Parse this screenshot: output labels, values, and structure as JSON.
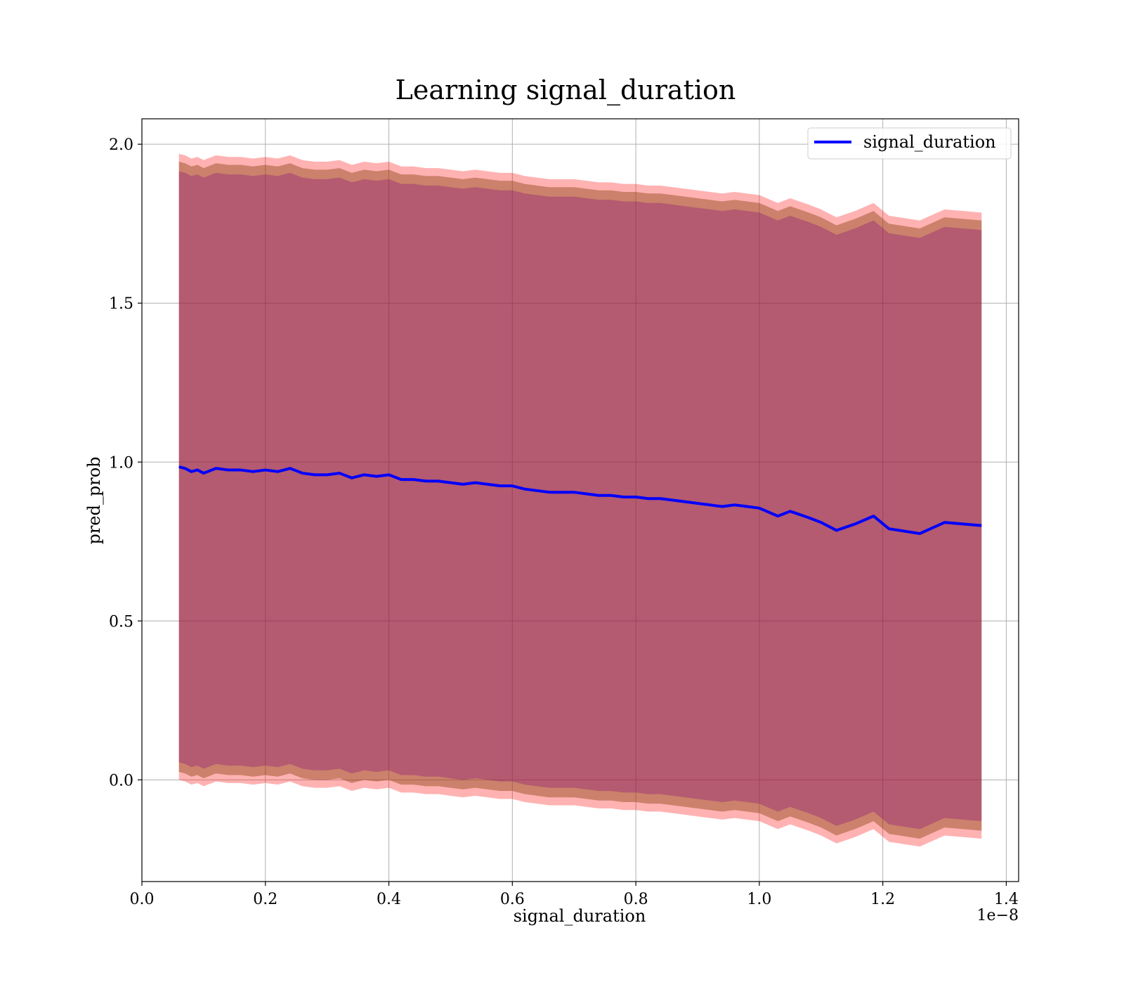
{
  "chart_data": {
    "type": "line",
    "title": "Learning signal_duration",
    "xlabel": "signal_duration",
    "ylabel": "pred_prob",
    "x_offset_label": "1e−8",
    "xlim": [
      0.0,
      1.42
    ],
    "ylim": [
      -0.32,
      2.08
    ],
    "x_ticks": [
      {
        "value": 0.0,
        "label": "0.0"
      },
      {
        "value": 0.2,
        "label": "0.2"
      },
      {
        "value": 0.4,
        "label": "0.4"
      },
      {
        "value": 0.6,
        "label": "0.6"
      },
      {
        "value": 0.8,
        "label": "0.8"
      },
      {
        "value": 1.0,
        "label": "1.0"
      },
      {
        "value": 1.2,
        "label": "1.2"
      },
      {
        "value": 1.4,
        "label": "1.4"
      }
    ],
    "y_ticks": [
      {
        "value": 0.0,
        "label": "0.0"
      },
      {
        "value": 0.5,
        "label": "0.5"
      },
      {
        "value": 1.0,
        "label": "1.0"
      },
      {
        "value": 1.5,
        "label": "1.5"
      },
      {
        "value": 2.0,
        "label": "2.0"
      }
    ],
    "grid": true,
    "legend_position": "top-right",
    "series": [
      {
        "name": "signal_duration",
        "color": "#0000ff",
        "x": [
          0.06,
          0.07,
          0.08,
          0.09,
          0.1,
          0.12,
          0.14,
          0.16,
          0.18,
          0.2,
          0.22,
          0.24,
          0.26,
          0.28,
          0.3,
          0.32,
          0.34,
          0.36,
          0.38,
          0.4,
          0.42,
          0.44,
          0.46,
          0.48,
          0.5,
          0.52,
          0.54,
          0.56,
          0.58,
          0.6,
          0.62,
          0.64,
          0.66,
          0.68,
          0.7,
          0.72,
          0.74,
          0.76,
          0.78,
          0.8,
          0.82,
          0.84,
          0.86,
          0.88,
          0.9,
          0.92,
          0.94,
          0.96,
          0.98,
          1.0,
          1.03,
          1.05,
          1.08,
          1.1,
          1.125,
          1.155,
          1.185,
          1.21,
          1.26,
          1.3,
          1.36
        ],
        "y": [
          0.985,
          0.98,
          0.97,
          0.975,
          0.965,
          0.98,
          0.975,
          0.975,
          0.97,
          0.975,
          0.97,
          0.98,
          0.965,
          0.96,
          0.96,
          0.965,
          0.95,
          0.96,
          0.955,
          0.96,
          0.945,
          0.945,
          0.94,
          0.94,
          0.935,
          0.93,
          0.935,
          0.93,
          0.925,
          0.925,
          0.915,
          0.91,
          0.905,
          0.905,
          0.905,
          0.9,
          0.895,
          0.895,
          0.89,
          0.89,
          0.885,
          0.885,
          0.88,
          0.875,
          0.87,
          0.865,
          0.86,
          0.865,
          0.86,
          0.855,
          0.83,
          0.845,
          0.825,
          0.81,
          0.785,
          0.805,
          0.83,
          0.79,
          0.775,
          0.81,
          0.8
        ]
      }
    ],
    "bands": [
      {
        "color": "#ff0000",
        "opacity": 0.3,
        "upper_offset": 0.985,
        "lower_offset": -0.985
      },
      {
        "color": "#8b4513",
        "opacity": 0.45,
        "upper_offset": 0.96,
        "lower_offset": -0.96
      },
      {
        "color": "#800080",
        "opacity": 0.3,
        "upper_offset": 0.93,
        "lower_offset": -0.93
      }
    ]
  }
}
